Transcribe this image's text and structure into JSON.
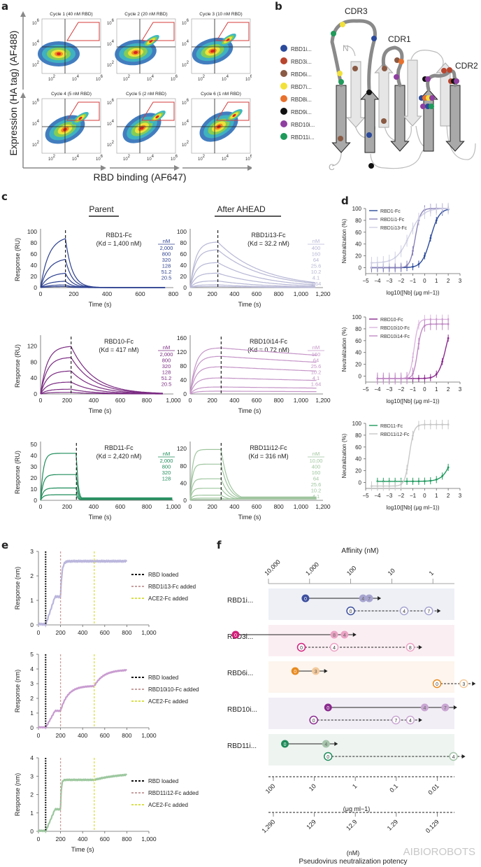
{
  "panel_labels": {
    "a": "a",
    "b": "b",
    "c": "c",
    "d": "d",
    "e": "e",
    "f": "f"
  },
  "panel_a": {
    "ylabel": "Expression (HA tag) (AF488)",
    "xlabel": "RBD binding (AF647)",
    "cycles": [
      {
        "title": "Cycle 1 (40 nM RBD)"
      },
      {
        "title": "Cycle 2 (20 nM RBD)"
      },
      {
        "title": "Cycle 3 (10 nM RBD)"
      },
      {
        "title": "Cycle 4 (5 nM RBD)"
      },
      {
        "title": "Cycle 5 (2 nM RBD)"
      },
      {
        "title": "Cycle 6 (1 nM RBD)"
      }
    ],
    "xticks": [
      "10^2",
      "10^4",
      "10^6"
    ],
    "yticks": [
      "10^2",
      "10^4",
      "10^6"
    ]
  },
  "panel_b": {
    "loops": [
      "CDR3",
      "CDR1",
      "CDR2"
    ],
    "termini": [
      "N",
      "C"
    ],
    "legend": [
      {
        "label": "RBD1i...",
        "color": "#2b4a9b"
      },
      {
        "label": "RBD3i...",
        "color": "#b8452e"
      },
      {
        "label": "RBD6i...",
        "color": "#8a5a44"
      },
      {
        "label": "RBD7i...",
        "color": "#f2e13a"
      },
      {
        "label": "RBD8i...",
        "color": "#e8712e"
      },
      {
        "label": "RBD9i...",
        "color": "#111111"
      },
      {
        "label": "RBD10i...",
        "color": "#8e3fa0"
      },
      {
        "label": "RBD11i...",
        "color": "#1f9a5a"
      }
    ]
  },
  "panel_c": {
    "col_titles": [
      "Parent",
      "After AHEAD"
    ],
    "chart_data": [
      {
        "type": "line",
        "title": "RBD1-Fc",
        "kd": "(Kd = 1,400 nM)",
        "ylabel": "Response (RU)",
        "xlabel": "Time (s)",
        "xlim": [
          0,
          800
        ],
        "ylim": [
          0,
          100
        ],
        "xticks": [
          "0",
          "200",
          "400",
          "600",
          "800"
        ],
        "yticks": [
          "0",
          "20",
          "40",
          "60",
          "80",
          "100"
        ],
        "conc_unit": "nM",
        "concentrations": [
          "2,000",
          "800",
          "320",
          "128",
          "51.2",
          "20.5"
        ],
        "plateaus": [
          92,
          53,
          27,
          12,
          5,
          2
        ],
        "dissociation_start": 150,
        "end": 750,
        "koff": 0.025,
        "color": "#2b3f8f"
      },
      {
        "type": "line",
        "title": "RBD1i13-Fc",
        "kd": "(Kd = 32.2 nM)",
        "ylabel": "",
        "xlabel": "Time (s)",
        "xlim": [
          0,
          1200
        ],
        "ylim": [
          0,
          100
        ],
        "xticks": [
          "0",
          "200",
          "400",
          "600",
          "800",
          "1,000",
          "1,200"
        ],
        "yticks": [
          "0",
          "20",
          "40",
          "60",
          "80",
          "100"
        ],
        "conc_unit": "nM",
        "concentrations": [
          "400",
          "160",
          "64",
          "25.6",
          "10.2",
          "4.1",
          "1.64"
        ],
        "plateaus": [
          82,
          68,
          45,
          26,
          12,
          5,
          2
        ],
        "dissociation_start": 250,
        "end": 1130,
        "koff": 0.0025,
        "color": "#b7b7d6"
      },
      {
        "type": "line",
        "title": "RBD10-Fc",
        "kd": "(Kd = 417 nM)",
        "ylabel": "Response (RU)",
        "xlabel": "Time (s)",
        "xlim": [
          0,
          1000
        ],
        "ylim": [
          0,
          140
        ],
        "xticks": [
          "0",
          "200",
          "400",
          "600",
          "800",
          "1,000"
        ],
        "yticks": [
          "0",
          "40",
          "80",
          "120"
        ],
        "conc_unit": "nM",
        "concentrations": [
          "2,000",
          "800",
          "320",
          "128",
          "51.2",
          "20.5"
        ],
        "plateaus": [
          120,
          92,
          58,
          30,
          12,
          4
        ],
        "dissociation_start": 230,
        "end": 920,
        "koff": 0.006,
        "color": "#7a2a82"
      },
      {
        "type": "line",
        "title": "RBD10i14-Fc",
        "kd": "(Kd = 0.72 nM)",
        "ylabel": "",
        "xlabel": "Time (s)",
        "xlim": [
          0,
          1200
        ],
        "ylim": [
          0,
          160
        ],
        "xticks": [
          "0",
          "200",
          "400",
          "600",
          "800",
          "1,000",
          "1,200"
        ],
        "yticks": [
          "0",
          "40",
          "80",
          "120",
          "160"
        ],
        "conc_unit": "nM",
        "concentrations": [
          "160",
          "64",
          "25.6",
          "10.2",
          "4.1",
          "1.64"
        ],
        "plateaus": [
          132,
          108,
          78,
          46,
          20,
          8
        ],
        "dissociation_start": 280,
        "end": 1150,
        "koff": 0.0002,
        "color": "#c595c8"
      },
      {
        "type": "line",
        "title": "RBD11-Fc",
        "kd": "(Kd = 2,420 nM)",
        "ylabel": "Response (RU)",
        "xlabel": "Time (s)",
        "xlim": [
          0,
          1000
        ],
        "ylim": [
          0,
          50
        ],
        "xticks": [
          "0",
          "200",
          "400",
          "600",
          "800",
          "1,000"
        ],
        "yticks": [
          "0",
          "10",
          "20",
          "30",
          "40",
          "50"
        ],
        "conc_unit": "nM",
        "concentrations": [
          "2,000",
          "800",
          "320",
          "128"
        ],
        "plateaus": [
          42,
          23,
          11,
          5
        ],
        "dissociation_start": 270,
        "end": 1000,
        "koff": 0.08,
        "color": "#1e8c5a"
      },
      {
        "type": "line",
        "title": "RBD11i12-Fc",
        "kd": "(Kd = 316 nM)",
        "ylabel": "",
        "xlabel": "Time (s)",
        "xlim": [
          0,
          1200
        ],
        "ylim": [
          0,
          130
        ],
        "xticks": [
          "0",
          "200",
          "400",
          "600",
          "800",
          "1,000",
          "1,200"
        ],
        "yticks": [
          "0",
          "40",
          "80",
          "120"
        ],
        "conc_unit": "nM",
        "concentrations": [
          "10,00",
          "400",
          "160",
          "64",
          "25.6",
          "10.2",
          "4.1"
        ],
        "plateaus": [
          118,
          84,
          50,
          28,
          12,
          5,
          2
        ],
        "dissociation_start": 280,
        "end": 1150,
        "koff": 0.015,
        "color": "#9fc59f"
      }
    ]
  },
  "panel_d": {
    "chart_data": [
      {
        "type": "line",
        "ylabel": "Neutralization (%)",
        "xlabel": "log10([Nb] (μg ml−1))",
        "xlim": [
          -5,
          3
        ],
        "ylim": [
          -10,
          100
        ],
        "xticks": [
          "−5",
          "−4",
          "−3",
          "−2",
          "−1",
          "0",
          "1",
          "2",
          "3"
        ],
        "yticks": [
          "0",
          "20",
          "40",
          "60",
          "80",
          "100"
        ],
        "series": [
          {
            "name": "RBD1-Fc",
            "color": "#2b4a9b",
            "ec50": 0.5,
            "top": 100,
            "bottom": 0,
            "hill": 1.2,
            "xmin": -4.5
          },
          {
            "name": "RBD1i1-Fc",
            "color": "#8a82b8",
            "ec50": -0.8,
            "top": 100,
            "bottom": 0,
            "hill": 2,
            "xmin": -4.5
          },
          {
            "name": "RBD1i13-Fc",
            "color": "#cfcfe4",
            "ec50": -1.3,
            "top": 100,
            "bottom": 8,
            "hill": 0.8,
            "xmin": -4.5
          }
        ]
      },
      {
        "type": "line",
        "ylabel": "Neutralization (%)",
        "xlabel": "log10([Nb] (μg ml−1))",
        "xlim": [
          -5,
          3
        ],
        "ylim": [
          -10,
          100
        ],
        "xticks": [
          "−5",
          "−4",
          "−3",
          "−2",
          "−1",
          "0",
          "1",
          "2",
          "3"
        ],
        "yticks": [
          "0",
          "20",
          "40",
          "60",
          "80",
          "100"
        ],
        "series": [
          {
            "name": "RBD10-Fc",
            "color": "#8a2a8e",
            "ec50": 1.8,
            "top": 100,
            "bottom": -4,
            "hill": 1.4,
            "xmin": -4
          },
          {
            "name": "RBD10i10-Fc",
            "color": "#dcb6df",
            "ec50": -0.9,
            "top": 96,
            "bottom": -4,
            "hill": 2.5,
            "xmin": -4
          },
          {
            "name": "RBD10i14-Fc",
            "color": "#c08ac5",
            "ec50": -0.6,
            "top": 88,
            "bottom": -4,
            "hill": 2.5,
            "xmin": -4
          }
        ]
      },
      {
        "type": "line",
        "ylabel": "Neutralization (%)",
        "xlabel": "log10([Nb] (μg ml−1))",
        "xlim": [
          -5,
          3
        ],
        "ylim": [
          -10,
          100
        ],
        "xticks": [
          "−5",
          "−4",
          "−3",
          "−2",
          "−1",
          "0",
          "1",
          "2",
          "3"
        ],
        "yticks": [
          "0",
          "20",
          "40",
          "60",
          "80",
          "100"
        ],
        "series": [
          {
            "name": "RBD11-Fc",
            "color": "#1e9a5e",
            "ec50": 2.5,
            "top": 100,
            "bottom": 2,
            "hill": 1.0,
            "xmin": -4
          },
          {
            "name": "RBD11i12-Fc",
            "color": "#c8c8c8",
            "ec50": -1.3,
            "top": 98,
            "bottom": -6,
            "hill": 2.2,
            "xmin": -4.5
          }
        ]
      }
    ]
  },
  "panel_e": {
    "chart_data": [
      {
        "type": "line",
        "ylabel": "Response (nm)",
        "xlabel": "",
        "xlim": [
          0,
          1000
        ],
        "ylim": [
          0,
          3
        ],
        "xticks": [
          "0",
          "200",
          "400",
          "600",
          "800",
          "1,000"
        ],
        "yticks": [
          "0",
          "1",
          "2",
          "3"
        ],
        "color": "#b9b5dc",
        "legend": [
          "RBD loaded",
          "RBD1i13-Fc added",
          "ACE2-Fc added"
        ],
        "events": [
          65,
          200,
          505
        ],
        "levels": {
          "rbd": 1.15,
          "nb": 2.6,
          "ace2": 2.6
        },
        "nb_rate": 0.08,
        "ace2_rate": 0.01
      },
      {
        "type": "line",
        "ylabel": "Response (nm)",
        "xlabel": "",
        "xlim": [
          0,
          1000
        ],
        "ylim": [
          0,
          5
        ],
        "xticks": [
          "0",
          "200",
          "400",
          "600",
          "800",
          "1,000"
        ],
        "yticks": [
          "0",
          "1",
          "2",
          "3",
          "4",
          "5"
        ],
        "color": "#c89bd0",
        "legend": [
          "RBD loaded",
          "RBD10i10-Fc added",
          "ACE2-Fc added"
        ],
        "events": [
          65,
          200,
          505
        ],
        "levels": {
          "rbd": 1.15,
          "nb": 2.85,
          "ace2": 3.95
        },
        "nb_rate": 0.015,
        "ace2_rate": 0.012
      },
      {
        "type": "line",
        "ylabel": "Response (nm)",
        "xlabel": "Time (s)",
        "xlim": [
          0,
          1000
        ],
        "ylim": [
          0,
          4
        ],
        "xticks": [
          "0",
          "200",
          "400",
          "600",
          "800",
          "1,000"
        ],
        "yticks": [
          "0",
          "1",
          "2",
          "3",
          "4"
        ],
        "color": "#9cc79e",
        "legend": [
          "RBD loaded",
          "RBD11i12-Fc added",
          "ACE2-Fc added"
        ],
        "events": [
          65,
          200,
          505
        ],
        "levels": {
          "rbd": 1.2,
          "nb": 2.8,
          "ace2": 3.2
        },
        "nb_rate": 0.15,
        "ace2_rate": 0.004
      }
    ],
    "event_colors": [
      "#111111",
      "#c9a0a0",
      "#d9e04a"
    ]
  },
  "panel_f": {
    "chart_data": {
      "type": "scatter",
      "top_axis_title": "Affinity (nM)",
      "top_ticks": [
        "10,000",
        "1,000",
        "100",
        "10",
        "1"
      ],
      "mid_axis_unit": "(μg ml−1)",
      "mid_ticks": [
        "100",
        "10",
        "1",
        "0.1",
        "0.01"
      ],
      "bottom_ticks": [
        "1,290",
        "129",
        "12.9",
        "1.29",
        "0.129"
      ],
      "bottom_unit": "(nM)",
      "bottom_title": "Pseudovirus neutralization potency",
      "rows": [
        {
          "label": "RBD1i...",
          "bg": "#eef0f6",
          "color": "#3d4f9e",
          "light": "#a7a4cf",
          "affinity": [
            {
              "cycle": "0",
              "log": 3.1
            },
            {
              "cycle": "4",
              "log": 1.7
            },
            {
              "cycle": "7",
              "log": 1.55
            }
          ],
          "potency": [
            {
              "cycle": "0",
              "log": 2.0
            },
            {
              "cycle": "4",
              "log": 0.7
            },
            {
              "cycle": "7",
              "log": 0.1
            }
          ]
        },
        {
          "label": "RBD3i...",
          "bg": "#fbeef3",
          "color": "#d21f7a",
          "light": "#eba3c4",
          "affinity": [
            {
              "cycle": "0",
              "log": 4.8
            },
            {
              "cycle": "8",
              "log": 2.4
            },
            {
              "cycle": "4",
              "log": 2.15
            }
          ],
          "potency": [
            {
              "cycle": "0",
              "log": 3.2
            },
            {
              "cycle": "4",
              "log": 2.4
            },
            {
              "cycle": "8",
              "log": 0.55
            }
          ]
        },
        {
          "label": "RBD6i...",
          "bg": "#fdf5ee",
          "color": "#e88a1f",
          "light": "#f3c99b",
          "affinity": [
            {
              "cycle": "0",
              "log": 3.35
            },
            {
              "cycle": "3",
              "log": 2.85
            }
          ],
          "potency": [
            {
              "cycle": "0",
              "log": -0.1
            },
            {
              "cycle": "3",
              "log": -0.75
            }
          ]
        },
        {
          "label": "RBD10i...",
          "bg": "#f2eef6",
          "color": "#8a2a8e",
          "light": "#c9a6d2",
          "affinity": [
            {
              "cycle": "0",
              "log": 2.55
            },
            {
              "cycle": "4",
              "log": 0.2
            },
            {
              "cycle": "7",
              "log": -0.3
            }
          ],
          "potency": [
            {
              "cycle": "0",
              "log": 2.9
            },
            {
              "cycle": "7",
              "log": 0.9
            },
            {
              "cycle": "4",
              "log": 0.55
            }
          ]
        },
        {
          "label": "RBD11i...",
          "bg": "#eef4f0",
          "color": "#1e8c5a",
          "light": "#a5c4aa",
          "affinity": [
            {
              "cycle": "0",
              "log": 3.6
            },
            {
              "cycle": "4",
              "log": 2.6
            }
          ],
          "potency": [
            {
              "cycle": "0",
              "log": 2.55
            },
            {
              "cycle": "4",
              "log": -0.5
            }
          ]
        }
      ]
    }
  },
  "watermark": "AIBIOROBOTS"
}
